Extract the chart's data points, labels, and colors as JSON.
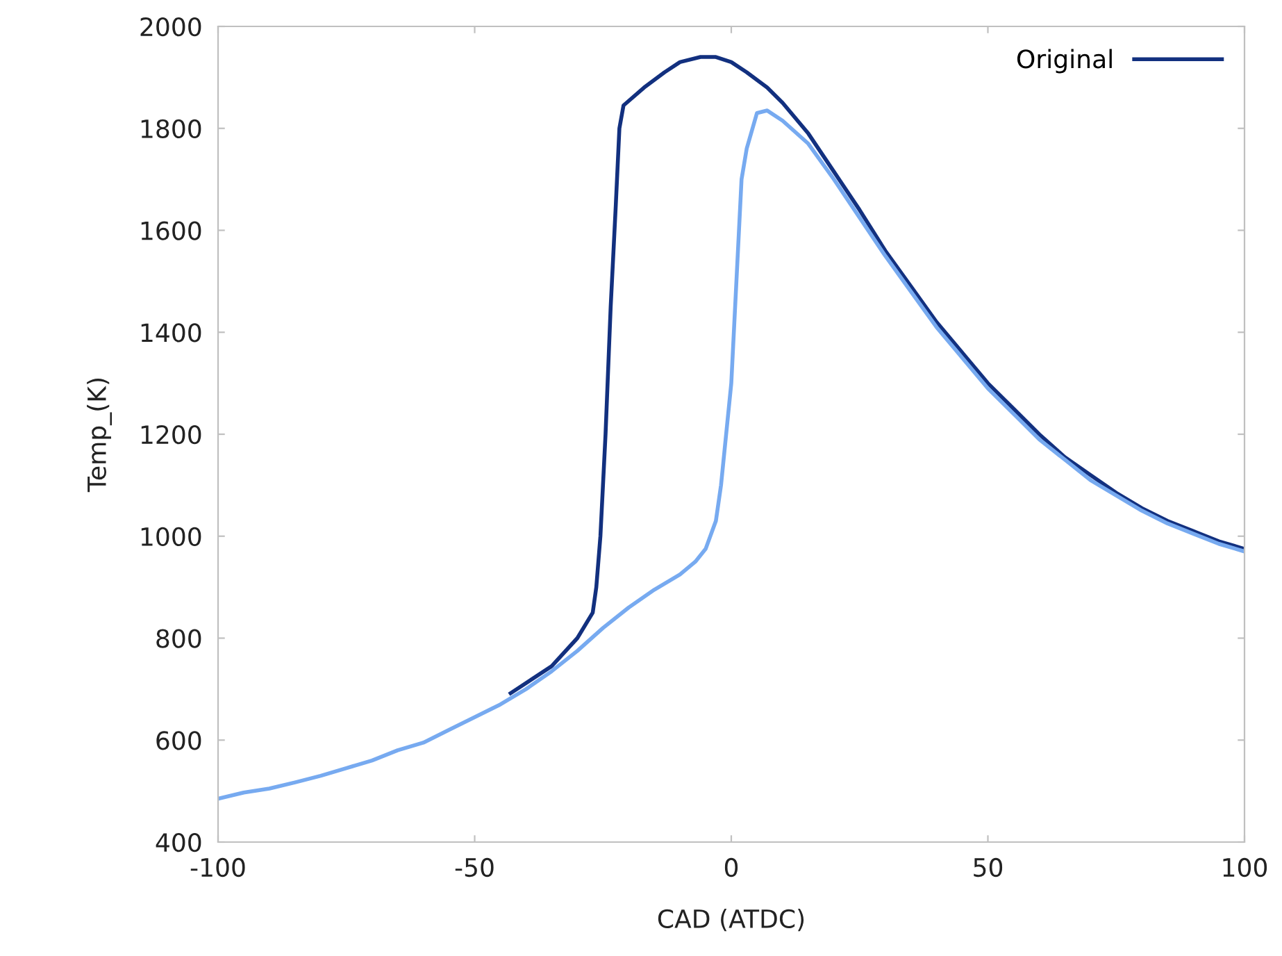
{
  "chart_data": {
    "type": "line",
    "xlabel": "CAD (ATDC)",
    "ylabel": "Temp_(K)",
    "xlim": [
      -100,
      100
    ],
    "xticks": [
      -100,
      -50,
      0,
      50,
      100
    ],
    "ylim": [
      400,
      2000
    ],
    "yticks": [
      400,
      600,
      800,
      1000,
      1200,
      1400,
      1600,
      1800,
      2000
    ],
    "grid": false,
    "legend": "top right",
    "marker": "none",
    "line_style": "solid",
    "series": [
      {
        "name": "Original",
        "color": "#12307f",
        "x": [
          -43,
          -35,
          -30,
          -27,
          -26.3,
          -25.5,
          -24.5,
          -23.5,
          -22.5,
          -21.8,
          -21,
          -17,
          -13,
          -10,
          -6,
          -3,
          0,
          3,
          7,
          10,
          15,
          20,
          25,
          30,
          35,
          40,
          45,
          50,
          55,
          60,
          65,
          70,
          75,
          80,
          85,
          90,
          95,
          100
        ],
        "values": [
          692,
          745,
          800,
          850,
          900,
          1000,
          1200,
          1450,
          1650,
          1800,
          1845,
          1880,
          1910,
          1930,
          1940,
          1940,
          1930,
          1910,
          1880,
          1850,
          1790,
          1715,
          1640,
          1560,
          1490,
          1420,
          1360,
          1300,
          1250,
          1200,
          1155,
          1120,
          1085,
          1055,
          1030,
          1010,
          990,
          975
        ]
      },
      {
        "color": "#77aaf0",
        "x": [
          -100,
          -95,
          -90,
          -85,
          -80,
          -75,
          -70,
          -65,
          -60,
          -55,
          -50,
          -45,
          -40,
          -35,
          -30,
          -25,
          -20,
          -15,
          -10,
          -7,
          -5,
          -3,
          -2,
          -1,
          0,
          1,
          2,
          3,
          5,
          7,
          10,
          15,
          20,
          25,
          30,
          35,
          40,
          45,
          50,
          55,
          60,
          65,
          70,
          75,
          80,
          85,
          90,
          95,
          100
        ],
        "values": [
          485,
          497,
          505,
          517,
          530,
          545,
          560,
          580,
          595,
          620,
          645,
          670,
          700,
          735,
          775,
          820,
          860,
          895,
          925,
          950,
          975,
          1030,
          1100,
          1200,
          1300,
          1500,
          1700,
          1760,
          1830,
          1835,
          1815,
          1770,
          1700,
          1625,
          1550,
          1480,
          1410,
          1350,
          1290,
          1240,
          1190,
          1150,
          1110,
          1080,
          1050,
          1025,
          1005,
          985,
          970
        ]
      }
    ]
  }
}
